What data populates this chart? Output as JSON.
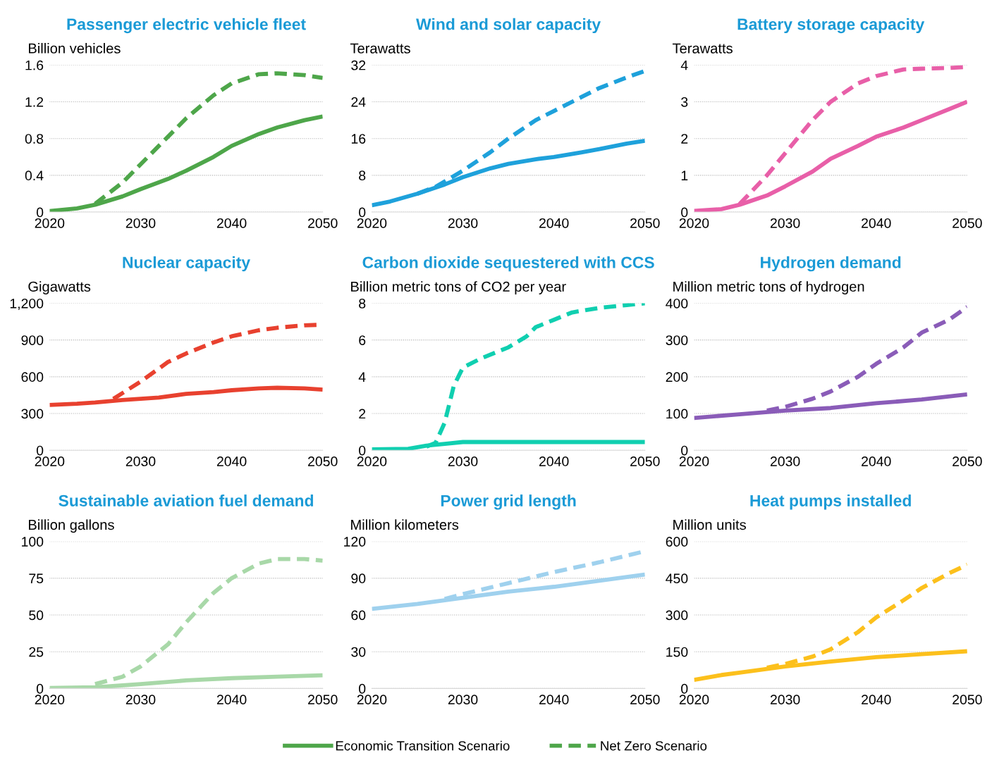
{
  "chart_data": [
    {
      "type": "line",
      "title": "Passenger electric vehicle fleet",
      "ylabel": "Billion vehicles",
      "xlim": [
        2020,
        2050
      ],
      "xticks": [
        2020,
        2030,
        2040,
        2050
      ],
      "ylim": [
        0,
        1.6
      ],
      "yticks": [
        0,
        0.4,
        0.8,
        1.2,
        1.6
      ],
      "grid": "y",
      "legend": "bottom",
      "series": [
        {
          "name": "Economic Transition Scenario",
          "color": "#4ea64a",
          "line_style": "solid",
          "x": [
            2020,
            2023,
            2025,
            2028,
            2030,
            2033,
            2035,
            2038,
            2040,
            2043,
            2045,
            2048,
            2050
          ],
          "values": [
            0.01,
            0.04,
            0.08,
            0.17,
            0.25,
            0.36,
            0.45,
            0.6,
            0.72,
            0.85,
            0.92,
            1.0,
            1.04
          ]
        },
        {
          "name": "Net Zero Scenario",
          "color": "#4ea64a",
          "line_style": "dashed",
          "x": [
            2025,
            2028,
            2030,
            2033,
            2035,
            2038,
            2040,
            2043,
            2045,
            2048,
            2050
          ],
          "values": [
            0.09,
            0.32,
            0.52,
            0.82,
            1.02,
            1.27,
            1.4,
            1.5,
            1.51,
            1.49,
            1.46
          ]
        }
      ]
    },
    {
      "type": "line",
      "title": "Wind and solar capacity",
      "ylabel": "Terawatts",
      "xlim": [
        2020,
        2050
      ],
      "xticks": [
        2020,
        2030,
        2040,
        2050
      ],
      "ylim": [
        0,
        32
      ],
      "yticks": [
        0,
        8,
        16,
        24,
        32
      ],
      "grid": "y",
      "series": [
        {
          "color": "#1ea1db",
          "line_style": "solid",
          "x": [
            2020,
            2022,
            2025,
            2028,
            2030,
            2033,
            2035,
            2038,
            2040,
            2043,
            2045,
            2048,
            2050
          ],
          "values": [
            1.5,
            2.3,
            4,
            6,
            7.6,
            9.5,
            10.5,
            11.5,
            12,
            13,
            13.7,
            14.9,
            15.5
          ]
        },
        {
          "color": "#1ea1db",
          "line_style": "dashed",
          "x": [
            2025,
            2027,
            2030,
            2033,
            2035,
            2038,
            2040,
            2043,
            2045,
            2048,
            2050
          ],
          "values": [
            4,
            5.5,
            9,
            13,
            16,
            20,
            22,
            25,
            27,
            29.3,
            30.7
          ]
        }
      ]
    },
    {
      "type": "line",
      "title": "Battery storage capacity",
      "ylabel": "Terawatts",
      "xlim": [
        2020,
        2050
      ],
      "xticks": [
        2020,
        2030,
        2040,
        2050
      ],
      "ylim": [
        0,
        4
      ],
      "yticks": [
        0,
        1,
        2,
        3,
        4
      ],
      "grid": "y",
      "series": [
        {
          "color": "#e85fa8",
          "line_style": "solid",
          "x": [
            2020,
            2023,
            2025,
            2028,
            2030,
            2033,
            2035,
            2038,
            2040,
            2043,
            2045,
            2048,
            2050
          ],
          "values": [
            0.03,
            0.08,
            0.2,
            0.45,
            0.7,
            1.1,
            1.45,
            1.8,
            2.05,
            2.3,
            2.5,
            2.8,
            3.0
          ]
        },
        {
          "color": "#e85fa8",
          "line_style": "dashed",
          "x": [
            2025,
            2028,
            2030,
            2033,
            2035,
            2038,
            2040,
            2043,
            2045,
            2048,
            2050
          ],
          "values": [
            0.22,
            1.0,
            1.6,
            2.5,
            3.0,
            3.5,
            3.7,
            3.88,
            3.9,
            3.92,
            3.95
          ]
        }
      ]
    },
    {
      "type": "line",
      "title": "Nuclear capacity",
      "ylabel": "Gigawatts",
      "xlim": [
        2020,
        2050
      ],
      "xticks": [
        2020,
        2030,
        2040,
        2050
      ],
      "ylim": [
        0,
        1200
      ],
      "yticks": [
        0,
        300,
        600,
        900,
        {
          "value": 1200,
          "label": "1,200"
        }
      ],
      "grid": "y",
      "series": [
        {
          "color": "#e8412f",
          "line_style": "solid",
          "x": [
            2020,
            2023,
            2025,
            2028,
            2030,
            2032,
            2035,
            2038,
            2040,
            2043,
            2045,
            2048,
            2050
          ],
          "values": [
            370,
            380,
            390,
            410,
            420,
            430,
            460,
            475,
            490,
            505,
            510,
            505,
            495
          ]
        },
        {
          "color": "#e8412f",
          "line_style": "dashed",
          "x": [
            2027,
            2030,
            2033,
            2035,
            2038,
            2040,
            2043,
            2045,
            2048,
            2050
          ],
          "values": [
            420,
            560,
            720,
            790,
            880,
            930,
            980,
            1000,
            1020,
            1025
          ]
        }
      ]
    },
    {
      "type": "line",
      "title": "Carbon dioxide sequestered with CCS",
      "ylabel": "Billion metric tons of CO2 per year",
      "xlim": [
        2020,
        2050
      ],
      "xticks": [
        2020,
        2030,
        2040,
        2050
      ],
      "ylim": [
        0,
        8
      ],
      "yticks": [
        0,
        2,
        4,
        6,
        8
      ],
      "grid": "y",
      "series": [
        {
          "color": "#10cfb0",
          "line_style": "solid",
          "x": [
            2020,
            2024,
            2026,
            2028,
            2030,
            2050
          ],
          "values": [
            0.05,
            0.08,
            0.25,
            0.35,
            0.45,
            0.45
          ]
        },
        {
          "color": "#10cfb0",
          "line_style": "dashed",
          "x": [
            2026,
            2027,
            2028,
            2029,
            2030,
            2032,
            2035,
            2037,
            2038,
            2040,
            2042,
            2045,
            2048,
            2050
          ],
          "values": [
            0.2,
            0.4,
            1.5,
            3.5,
            4.5,
            5.0,
            5.6,
            6.2,
            6.7,
            7.1,
            7.5,
            7.75,
            7.9,
            8.0
          ]
        }
      ]
    },
    {
      "type": "line",
      "title": "Hydrogen demand",
      "ylabel": "Million metric tons of hydrogen",
      "xlim": [
        2020,
        2050
      ],
      "xticks": [
        2020,
        2030,
        2040,
        2050
      ],
      "ylim": [
        0,
        400
      ],
      "yticks": [
        0,
        100,
        200,
        300,
        400
      ],
      "grid": "y",
      "series": [
        {
          "color": "#8a5cb8",
          "line_style": "solid",
          "x": [
            2020,
            2025,
            2030,
            2035,
            2040,
            2045,
            2050
          ],
          "values": [
            88,
            98,
            108,
            115,
            128,
            138,
            152
          ]
        },
        {
          "color": "#8a5cb8",
          "line_style": "dashed",
          "x": [
            2028,
            2030,
            2033,
            2035,
            2038,
            2040,
            2043,
            2045,
            2048,
            2050
          ],
          "values": [
            108,
            118,
            140,
            160,
            200,
            235,
            280,
            320,
            355,
            390
          ]
        }
      ]
    },
    {
      "type": "line",
      "title": "Sustainable aviation fuel demand",
      "ylabel": "Billion gallons",
      "xlim": [
        2020,
        2050
      ],
      "xticks": [
        2020,
        2030,
        2040,
        2050
      ],
      "ylim": [
        0,
        100
      ],
      "yticks": [
        0,
        25,
        50,
        75,
        100
      ],
      "grid": "y",
      "series": [
        {
          "color": "#a8d8a8",
          "line_style": "solid",
          "x": [
            2020,
            2025,
            2030,
            2035,
            2040,
            2045,
            2050
          ],
          "values": [
            0.3,
            0.8,
            3,
            5.5,
            7,
            8,
            9
          ]
        },
        {
          "color": "#a8d8a8",
          "line_style": "dashed",
          "x": [
            2025,
            2028,
            2030,
            2033,
            2035,
            2038,
            2040,
            2043,
            2045,
            2048,
            2050
          ],
          "values": [
            3,
            8,
            15,
            30,
            45,
            65,
            75,
            85,
            88,
            88,
            87
          ]
        }
      ]
    },
    {
      "type": "line",
      "title": "Power grid length",
      "ylabel": "Million kilometers",
      "xlim": [
        2020,
        2050
      ],
      "xticks": [
        2020,
        2030,
        2040,
        2050
      ],
      "ylim": [
        0,
        120
      ],
      "yticks": [
        0,
        30,
        60,
        90,
        120
      ],
      "grid": "y",
      "series": [
        {
          "color": "#9fd1ee",
          "line_style": "solid",
          "x": [
            2020,
            2025,
            2030,
            2035,
            2040,
            2045,
            2050
          ],
          "values": [
            65,
            69,
            74,
            79,
            83,
            88,
            93
          ]
        },
        {
          "color": "#9fd1ee",
          "line_style": "dashed",
          "x": [
            2028,
            2030,
            2035,
            2040,
            2045,
            2050
          ],
          "values": [
            73,
            77,
            86,
            95,
            103,
            112
          ]
        }
      ]
    },
    {
      "type": "line",
      "title": "Heat pumps installed",
      "ylabel": "Million units",
      "xlim": [
        2020,
        2050
      ],
      "xticks": [
        2020,
        2030,
        2040,
        2050
      ],
      "ylim": [
        0,
        600
      ],
      "yticks": [
        0,
        150,
        300,
        450,
        600
      ],
      "grid": "y",
      "series": [
        {
          "color": "#fcc01c",
          "line_style": "solid",
          "x": [
            2020,
            2023,
            2025,
            2028,
            2030,
            2035,
            2040,
            2045,
            2050
          ],
          "values": [
            35,
            55,
            65,
            80,
            90,
            110,
            128,
            140,
            152
          ]
        },
        {
          "color": "#fcc01c",
          "line_style": "dashed",
          "x": [
            2028,
            2030,
            2033,
            2035,
            2038,
            2040,
            2043,
            2045,
            2048,
            2050
          ],
          "values": [
            85,
            100,
            130,
            160,
            230,
            290,
            360,
            410,
            470,
            505
          ]
        }
      ]
    }
  ]
}
